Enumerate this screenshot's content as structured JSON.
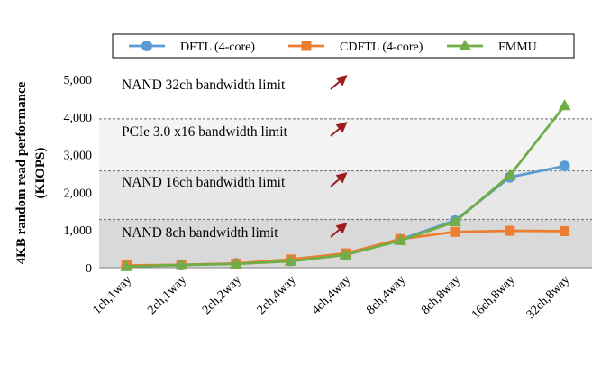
{
  "chart_data": {
    "type": "line",
    "ylabel_line1": "4KB random read performance",
    "ylabel_line2": "(KIOPS)",
    "xlabel": "",
    "ylim": [
      0,
      5000
    ],
    "yticks": [
      0,
      1000,
      2000,
      3000,
      4000,
      5000
    ],
    "ytick_labels": [
      "0",
      "1,000",
      "2,000",
      "3,000",
      "4,000",
      "5,000"
    ],
    "categories": [
      "1ch,1way",
      "2ch,1way",
      "2ch,2way",
      "2ch,4way",
      "4ch,4way",
      "8ch,4way",
      "8ch,8way",
      "16ch,8way",
      "32ch,8way"
    ],
    "series": [
      {
        "name": "DFTL (4-core)",
        "color": "#5b9bd5",
        "marker": "circle",
        "values": [
          50,
          70,
          110,
          180,
          350,
          750,
          1250,
          2400,
          2700
        ]
      },
      {
        "name": "CDFTL (4-core)",
        "color": "#ed7d31",
        "marker": "square",
        "values": [
          60,
          75,
          110,
          220,
          380,
          760,
          950,
          980,
          970
        ]
      },
      {
        "name": "FMMU",
        "color": "#70ad47",
        "marker": "triangle",
        "values": [
          30,
          70,
          100,
          170,
          340,
          720,
          1220,
          2450,
          4300
        ]
      }
    ],
    "bands": [
      {
        "label": "NAND 8ch bandwidth limit",
        "from": 0,
        "to": 1280,
        "fill": "#d9d9d9"
      },
      {
        "label": "NAND 16ch bandwidth limit",
        "from": 1280,
        "to": 2570,
        "fill": "#e7e7e7"
      },
      {
        "label": "PCIe 3.0 x16 bandwidth limit",
        "from": 2570,
        "to": 3950,
        "fill": "#f4f4f4"
      },
      {
        "label": "NAND 32ch bandwidth limit",
        "from": 3950,
        "to": 5000,
        "fill": "#ffffff"
      }
    ],
    "limit_lines": [
      1280,
      2570,
      3950
    ],
    "arrow_color": "#9e1b20",
    "legend_position": "top",
    "grid": false
  }
}
